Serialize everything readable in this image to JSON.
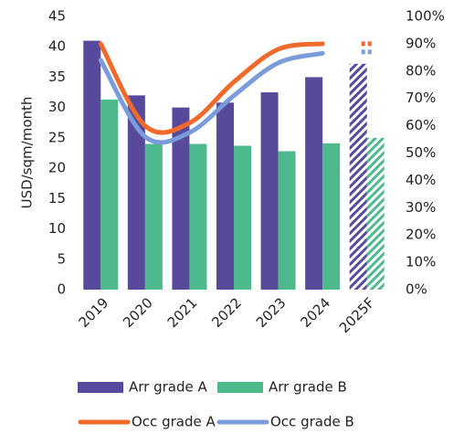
{
  "chart_data": {
    "type": "bar-line",
    "y_label": "USD/sqm/month",
    "categories": [
      "2019",
      "2020",
      "2021",
      "2022",
      "2023",
      "2024",
      "2025F"
    ],
    "series": [
      {
        "name": "Arr grade A",
        "type": "bar",
        "color": "#574a9c",
        "values": [
          41,
          32,
          30,
          30.8,
          32.5,
          35,
          37.2
        ]
      },
      {
        "name": "Arr grade B",
        "type": "bar",
        "color": "#4fb98e",
        "values": [
          31.3,
          24,
          24,
          23.7,
          22.8,
          24.1,
          25
        ]
      },
      {
        "name": "Occ grade A",
        "type": "line",
        "axis": "y2",
        "color": "#f26a2a",
        "values": [
          90,
          60,
          61,
          76,
          88,
          90,
          90
        ]
      },
      {
        "name": "Occ grade B",
        "type": "line",
        "axis": "y2",
        "color": "#7b9cdb",
        "values": [
          84,
          56,
          57.5,
          71,
          83,
          86.5,
          87
        ]
      }
    ],
    "ylim": [
      0,
      45
    ],
    "yticks": [
      0,
      5,
      10,
      15,
      20,
      25,
      30,
      35,
      40,
      45
    ],
    "y2lim": [
      0,
      100
    ],
    "y2ticks": [
      {
        "value": 0,
        "label": "0%"
      },
      {
        "value": 10,
        "label": "10%"
      },
      {
        "value": 20,
        "label": "20%"
      },
      {
        "value": 30,
        "label": "30%"
      },
      {
        "value": 40,
        "label": "40%"
      },
      {
        "value": 50,
        "label": "50%"
      },
      {
        "value": 60,
        "label": "60%"
      },
      {
        "value": 70,
        "label": "70%"
      },
      {
        "value": 80,
        "label": "80%"
      },
      {
        "value": 90,
        "label": "90%"
      },
      {
        "value": 100,
        "label": "100%"
      }
    ]
  }
}
